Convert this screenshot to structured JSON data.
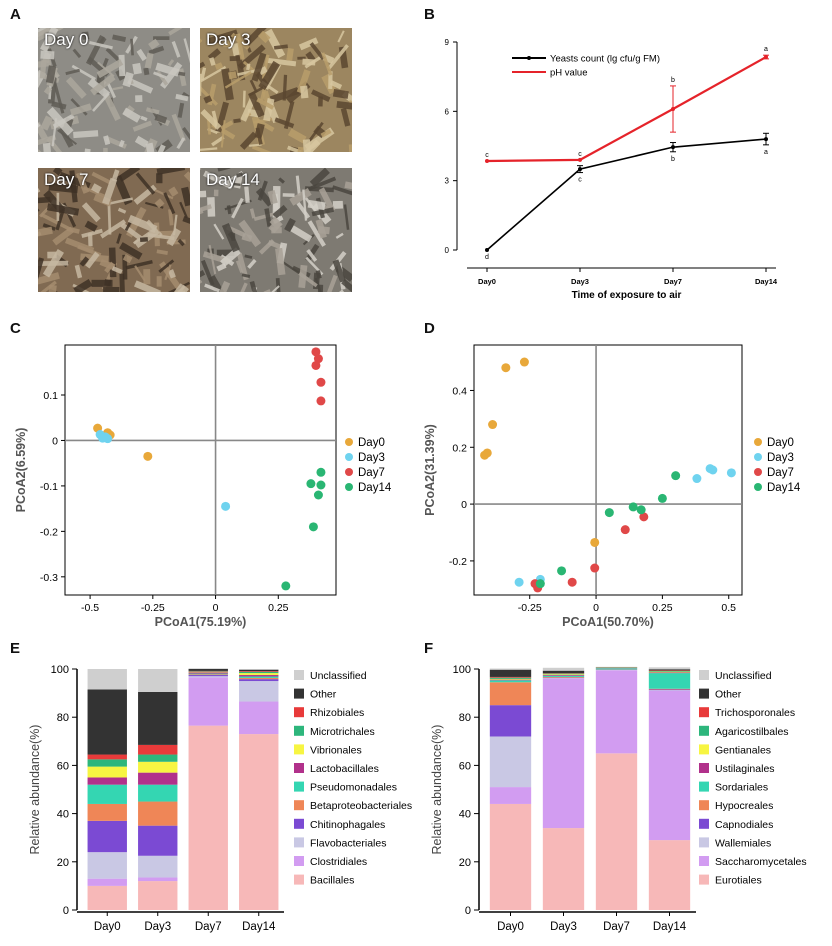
{
  "panels": {
    "a": "A",
    "b": "B",
    "c": "C",
    "d": "D",
    "e": "E",
    "f": "F"
  },
  "photos": [
    {
      "label": "Day 0",
      "colors": [
        "#8e8c86",
        "#c9c7bf",
        "#5f5c55",
        "#aba79c"
      ]
    },
    {
      "label": "Day 3",
      "colors": [
        "#9c8660",
        "#d7c7a0",
        "#5b4630",
        "#b89d6b"
      ]
    },
    {
      "label": "Day 7",
      "colors": [
        "#806a52",
        "#c6b7a1",
        "#3e3126",
        "#a58c6e"
      ]
    },
    {
      "label": "Day 14",
      "colors": [
        "#7e7a72",
        "#d3d0c8",
        "#4a4740",
        "#a8a196"
      ]
    }
  ],
  "chart_data": [
    {
      "id": "B",
      "type": "line",
      "x": [
        "Day0",
        "Day3",
        "Day7",
        "Day14"
      ],
      "xlabel": "Time of exposure to air",
      "ylabel": "",
      "ylim": [
        0,
        9
      ],
      "yticks": [
        0,
        3,
        6,
        9
      ],
      "legend_position": "top-left",
      "series": [
        {
          "name": "Yeasts count (lg cfu/g FM)",
          "color": "#000000",
          "values": [
            0.0,
            3.5,
            4.45,
            4.8
          ],
          "errors": [
            0,
            0.15,
            0.2,
            0.25
          ],
          "letters_above": [
            "",
            "",
            "",
            ""
          ],
          "letters_below": [
            "d",
            "c",
            "b",
            "a"
          ]
        },
        {
          "name": "pH value",
          "color": "#e5232a",
          "values": [
            3.85,
            3.9,
            6.1,
            8.35
          ],
          "errors": [
            0,
            0,
            1.0,
            0.08
          ],
          "letters_above": [
            "c",
            "c",
            "b",
            "a"
          ],
          "letters_below": [
            "",
            "",
            "",
            ""
          ]
        }
      ]
    },
    {
      "id": "C",
      "type": "scatter",
      "xlabel": "PCoA1(75.19%)",
      "ylabel": "PCoA2(6.59%)",
      "xlim": [
        -0.6,
        0.48
      ],
      "ylim": [
        -0.34,
        0.21
      ],
      "xticks": [
        -0.5,
        -0.25,
        0,
        0.25
      ],
      "xtick_labels": [
        "-0.5",
        "-0.25",
        "0",
        "0.25"
      ],
      "yticks": [
        0.1,
        0,
        -0.1,
        -0.2,
        -0.3
      ],
      "ytick_labels": [
        "0.1",
        "0",
        "-0.1",
        "-0.2",
        "-0.3"
      ],
      "legend_position": "right",
      "series": [
        {
          "name": "Day0",
          "color": "#e8a83a",
          "points": [
            [
              -0.47,
              0.027
            ],
            [
              -0.43,
              0.017
            ],
            [
              -0.42,
              0.012
            ],
            [
              -0.27,
              -0.035
            ]
          ]
        },
        {
          "name": "Day3",
          "color": "#6fd3ef",
          "points": [
            [
              -0.46,
              0.013
            ],
            [
              -0.44,
              0.008
            ],
            [
              -0.43,
              0.004
            ],
            [
              -0.45,
              0.005
            ],
            [
              0.04,
              -0.145
            ]
          ]
        },
        {
          "name": "Day7",
          "color": "#e04848",
          "points": [
            [
              0.4,
              0.195
            ],
            [
              0.41,
              0.18
            ],
            [
              0.4,
              0.165
            ],
            [
              0.42,
              0.128
            ],
            [
              0.42,
              0.087
            ]
          ]
        },
        {
          "name": "Day14",
          "color": "#2ab673",
          "points": [
            [
              0.42,
              -0.07
            ],
            [
              0.38,
              -0.095
            ],
            [
              0.42,
              -0.098
            ],
            [
              0.41,
              -0.12
            ],
            [
              0.39,
              -0.19
            ],
            [
              0.28,
              -0.32
            ]
          ]
        }
      ]
    },
    {
      "id": "D",
      "type": "scatter",
      "xlabel": "PCoA1(50.70%)",
      "ylabel": "PCoA2(31.39%)",
      "xlim": [
        -0.46,
        0.55
      ],
      "ylim": [
        -0.32,
        0.56
      ],
      "xticks": [
        -0.25,
        0,
        0.25,
        0.5
      ],
      "xtick_labels": [
        "-0.25",
        "0",
        "0.25",
        "0.5"
      ],
      "yticks": [
        0.4,
        0.2,
        0,
        -0.2
      ],
      "ytick_labels": [
        "0.4",
        "0.2",
        "0",
        "-0.2"
      ],
      "legend_position": "right",
      "series": [
        {
          "name": "Day0",
          "color": "#e8a83a",
          "points": [
            [
              -0.27,
              0.5
            ],
            [
              -0.34,
              0.48
            ],
            [
              -0.39,
              0.28
            ],
            [
              -0.41,
              0.18
            ],
            [
              -0.42,
              0.172
            ],
            [
              -0.005,
              -0.135
            ]
          ]
        },
        {
          "name": "Day3",
          "color": "#6fd3ef",
          "points": [
            [
              0.43,
              0.125
            ],
            [
              0.44,
              0.12
            ],
            [
              0.51,
              0.11
            ],
            [
              0.38,
              0.09
            ],
            [
              -0.29,
              -0.275
            ],
            [
              -0.21,
              -0.265
            ]
          ]
        },
        {
          "name": "Day7",
          "color": "#e04848",
          "points": [
            [
              0.18,
              -0.045
            ],
            [
              0.11,
              -0.09
            ],
            [
              -0.005,
              -0.225
            ],
            [
              -0.09,
              -0.275
            ],
            [
              -0.23,
              -0.28
            ],
            [
              -0.22,
              -0.295
            ]
          ]
        },
        {
          "name": "Day14",
          "color": "#2ab673",
          "points": [
            [
              0.3,
              0.1
            ],
            [
              0.25,
              0.02
            ],
            [
              0.14,
              -0.01
            ],
            [
              0.17,
              -0.02
            ],
            [
              0.05,
              -0.03
            ],
            [
              -0.13,
              -0.235
            ],
            [
              -0.21,
              -0.28
            ]
          ]
        }
      ]
    },
    {
      "id": "E",
      "type": "bar",
      "stacked": true,
      "categories": [
        "Day0",
        "Day3",
        "Day7",
        "Day14"
      ],
      "ylabel": "Relative abundance(%)",
      "xlabel": "",
      "ylim": [
        0,
        100
      ],
      "yticks": [
        0,
        20,
        40,
        60,
        80,
        100
      ],
      "legend_position": "right",
      "series": [
        {
          "name": "Bacillales",
          "color": "#f7b8b8",
          "values": [
            10,
            12,
            76.5,
            73
          ]
        },
        {
          "name": "Clostridiales",
          "color": "#d29cf1",
          "values": [
            3,
            1.5,
            20,
            13.5
          ]
        },
        {
          "name": "Flavobacteriales",
          "color": "#c9c8e4",
          "values": [
            11,
            9,
            0.5,
            8.5
          ]
        },
        {
          "name": "Chitinophagales",
          "color": "#7b4ad3",
          "values": [
            13,
            12.5,
            0.5,
            0.8
          ]
        },
        {
          "name": "Betaproteobacteriales",
          "color": "#ef8657",
          "values": [
            7,
            10,
            0.3,
            0.5
          ]
        },
        {
          "name": "Pseudomonadales",
          "color": "#34d6b2",
          "values": [
            8,
            7,
            0.3,
            0.6
          ]
        },
        {
          "name": "Lactobacillales",
          "color": "#b1318b",
          "values": [
            3,
            5,
            0.5,
            0.6
          ]
        },
        {
          "name": "Vibrionales",
          "color": "#f7f542",
          "values": [
            4.5,
            4.5,
            0.2,
            0.8
          ]
        },
        {
          "name": "Microtrichales",
          "color": "#2db67c",
          "values": [
            3,
            3,
            0.2,
            0.5
          ]
        },
        {
          "name": "Rhizobiales",
          "color": "#e83a3a",
          "values": [
            2,
            4,
            0.2,
            0.3
          ]
        },
        {
          "name": "Other",
          "color": "#333333",
          "values": [
            27,
            22,
            0.8,
            0.6
          ]
        },
        {
          "name": "Unclassified",
          "color": "#cfcfcf",
          "values": [
            8.5,
            9.5,
            0.3,
            0.3
          ]
        }
      ]
    },
    {
      "id": "F",
      "type": "bar",
      "stacked": true,
      "categories": [
        "Day0",
        "Day3",
        "Day7",
        "Day14"
      ],
      "ylabel": "Relative abundance(%)",
      "xlabel": "",
      "ylim": [
        0,
        100
      ],
      "yticks": [
        0,
        20,
        40,
        60,
        80,
        100
      ],
      "legend_position": "right",
      "series": [
        {
          "name": "Eurotiales",
          "color": "#f7b8b8",
          "values": [
            44,
            34,
            65,
            29
          ]
        },
        {
          "name": "Saccharomycetales",
          "color": "#d29cf1",
          "values": [
            7,
            62,
            34.5,
            62
          ]
        },
        {
          "name": "Wallemiales",
          "color": "#c9c8e4",
          "values": [
            21,
            0.2,
            0.1,
            0.2
          ]
        },
        {
          "name": "Capnodiales",
          "color": "#7b4ad3",
          "values": [
            13,
            0.2,
            0.1,
            0.3
          ]
        },
        {
          "name": "Hypocreales",
          "color": "#ef8657",
          "values": [
            9.5,
            0.3,
            0.1,
            0.3
          ]
        },
        {
          "name": "Sordariales",
          "color": "#34d6b2",
          "values": [
            0.8,
            0.5,
            0.5,
            6.5
          ]
        },
        {
          "name": "Ustilaginales",
          "color": "#b1318b",
          "values": [
            0.3,
            0.3,
            0.1,
            0.3
          ]
        },
        {
          "name": "Gentianales",
          "color": "#f7f542",
          "values": [
            0.3,
            0.3,
            0.1,
            0.3
          ]
        },
        {
          "name": "Agaricostilbales",
          "color": "#2db67c",
          "values": [
            0.5,
            0.3,
            0.1,
            0.3
          ]
        },
        {
          "name": "Trichosporonales",
          "color": "#e83a3a",
          "values": [
            0.3,
            0.2,
            0.1,
            0.2
          ]
        },
        {
          "name": "Other",
          "color": "#333333",
          "values": [
            3,
            1,
            0.1,
            0.5
          ]
        },
        {
          "name": "Unclassified",
          "color": "#cfcfcf",
          "values": [
            0.5,
            1.2,
            0.1,
            0.8
          ]
        }
      ]
    }
  ]
}
